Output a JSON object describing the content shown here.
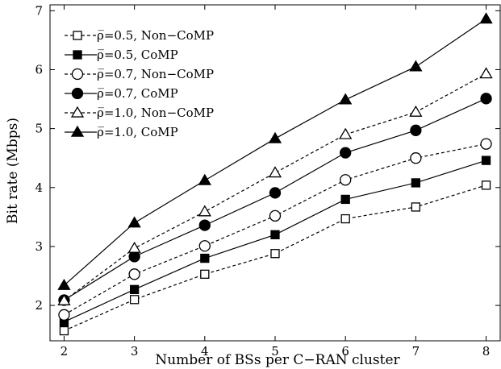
{
  "chart_data": {
    "type": "line",
    "title": "",
    "xlabel": "Number of BSs per C−RAN cluster",
    "ylabel": "Bit rate (Mbps)",
    "x": [
      2,
      3,
      4,
      5,
      6,
      7,
      8
    ],
    "xlim": [
      1.8,
      8.2
    ],
    "ylim": [
      1.4,
      7.1
    ],
    "xticks": [
      "2",
      "3",
      "4",
      "5",
      "6",
      "7",
      "8"
    ],
    "yticks": [
      "2",
      "3",
      "4",
      "5",
      "6",
      "7"
    ],
    "grid": false,
    "legend_position": "top-left",
    "series": [
      {
        "name": "ρ̅=0.5, Non−CoMP",
        "marker": "square",
        "filled": false,
        "dashed": true,
        "values": [
          1.57,
          2.1,
          2.53,
          2.88,
          3.47,
          3.67,
          4.04
        ]
      },
      {
        "name": "ρ̅=0.5, CoMP",
        "marker": "square",
        "filled": true,
        "dashed": false,
        "values": [
          1.72,
          2.27,
          2.8,
          3.2,
          3.8,
          4.08,
          4.46
        ]
      },
      {
        "name": "ρ̅=0.7, Non−CoMP",
        "marker": "circle",
        "filled": false,
        "dashed": true,
        "values": [
          1.84,
          2.53,
          3.01,
          3.52,
          4.13,
          4.5,
          4.74
        ]
      },
      {
        "name": "ρ̅=0.7, CoMP",
        "marker": "circle",
        "filled": true,
        "dashed": false,
        "values": [
          2.09,
          2.83,
          3.36,
          3.91,
          4.59,
          4.97,
          5.51
        ]
      },
      {
        "name": "ρ̅=1.0, Non−CoMP",
        "marker": "triangle",
        "filled": false,
        "dashed": true,
        "values": [
          2.08,
          2.97,
          3.59,
          4.25,
          4.9,
          5.28,
          5.93
        ]
      },
      {
        "name": "ρ̅=1.0, CoMP",
        "marker": "triangle",
        "filled": true,
        "dashed": false,
        "values": [
          2.34,
          3.4,
          4.12,
          4.83,
          5.49,
          6.05,
          6.86
        ]
      }
    ]
  }
}
